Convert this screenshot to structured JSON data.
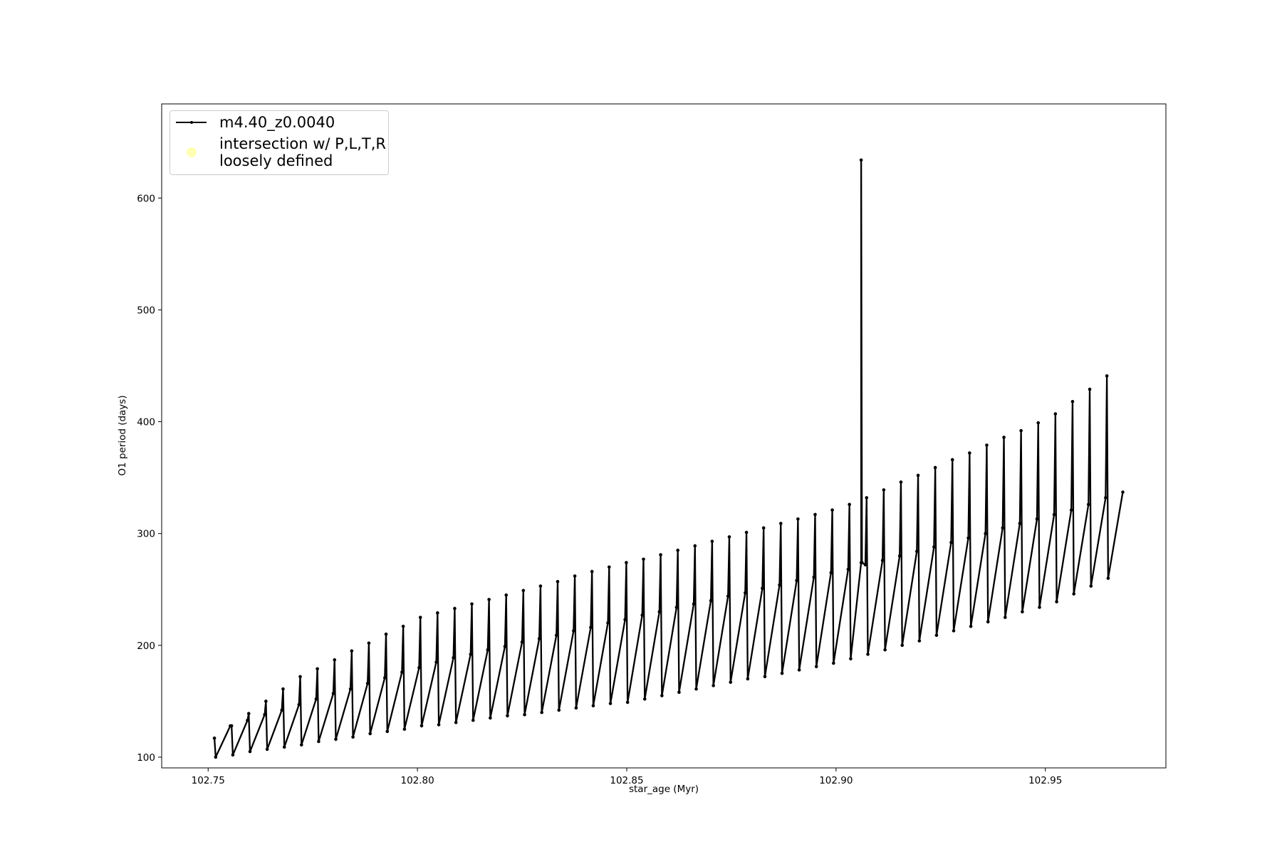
{
  "chart_data": {
    "type": "line",
    "xlabel": "star_age (Myr)",
    "ylabel": "O1 period (days)",
    "xlim": [
      102.7389,
      102.9788
    ],
    "ylim": [
      90.4,
      684.2
    ],
    "xticks": [
      {
        "value": 102.75,
        "label": "102.75"
      },
      {
        "value": 102.8,
        "label": "102.80"
      },
      {
        "value": 102.85,
        "label": "102.85"
      },
      {
        "value": 102.9,
        "label": "102.90"
      },
      {
        "value": 102.95,
        "label": "102.95"
      }
    ],
    "yticks": [
      100,
      200,
      300,
      400,
      500,
      600
    ],
    "legend": "upper left",
    "series": [
      {
        "name": "m4.40_z0.0040",
        "color": "#000000",
        "marker": "dot",
        "x": [
          102.7515,
          102.7518,
          102.7553,
          102.7556,
          102.7559,
          102.7594,
          102.7597,
          102.76,
          102.7635,
          102.7638,
          102.7641,
          102.7676,
          102.7679,
          102.7682,
          102.7717,
          102.772,
          102.7723,
          102.7758,
          102.7761,
          102.7764,
          102.7799,
          102.7802,
          102.7805,
          102.784,
          102.7843,
          102.7846,
          102.7881,
          102.7884,
          102.7887,
          102.7922,
          102.7925,
          102.7928,
          102.7963,
          102.7966,
          102.7969,
          102.8004,
          102.8007,
          102.801,
          102.8045,
          102.8048,
          102.8051,
          102.8086,
          102.8089,
          102.8092,
          102.8127,
          102.813,
          102.8133,
          102.8168,
          102.8171,
          102.8174,
          102.8209,
          102.8212,
          102.8215,
          102.825,
          102.8253,
          102.8256,
          102.8291,
          102.8294,
          102.8297,
          102.8332,
          102.8335,
          102.8338,
          102.8373,
          102.8376,
          102.8379,
          102.8414,
          102.8417,
          102.842,
          102.8455,
          102.8458,
          102.8461,
          102.8496,
          102.8499,
          102.8502,
          102.8537,
          102.854,
          102.8543,
          102.8578,
          102.8581,
          102.8584,
          102.8619,
          102.8622,
          102.8625,
          102.866,
          102.8663,
          102.8666,
          102.8701,
          102.8704,
          102.8707,
          102.8742,
          102.8745,
          102.8748,
          102.8783,
          102.8786,
          102.8789,
          102.8824,
          102.8827,
          102.883,
          102.8865,
          102.8868,
          102.8871,
          102.8906,
          102.8909,
          102.8912,
          102.8947,
          102.895,
          102.8953,
          102.8988,
          102.8991,
          102.8994,
          102.9029,
          102.9032,
          102.9035,
          102.906,
          102.906,
          102.9062,
          102.907,
          102.9073,
          102.9076,
          102.9111,
          102.9114,
          102.9117,
          102.9152,
          102.9155,
          102.9158,
          102.9193,
          102.9196,
          102.9199,
          102.9234,
          102.9237,
          102.924,
          102.9275,
          102.9278,
          102.9281,
          102.9316,
          102.9319,
          102.9322,
          102.9357,
          102.936,
          102.9363,
          102.9398,
          102.9401,
          102.9404,
          102.9439,
          102.9442,
          102.9445,
          102.948,
          102.9483,
          102.9486,
          102.9521,
          102.9524,
          102.9527,
          102.9562,
          102.9565,
          102.9568,
          102.9603,
          102.9606,
          102.9609,
          102.9644,
          102.9647,
          102.965,
          102.9685
        ],
        "values": [
          117,
          100,
          128,
          128,
          102,
          133,
          139,
          105,
          138,
          150,
          107,
          142,
          161,
          109,
          147,
          172,
          111,
          152,
          179,
          114,
          157,
          187,
          116,
          161,
          195,
          118,
          166,
          202,
          121,
          171,
          210,
          123,
          176,
          217,
          125,
          180,
          225,
          128,
          185,
          229,
          129,
          189,
          233,
          131,
          192,
          237,
          133,
          196,
          241,
          135,
          199,
          245,
          137,
          203,
          249,
          138,
          206,
          253,
          140,
          209,
          257,
          142,
          213,
          262,
          144,
          216,
          266,
          146,
          220,
          270,
          148,
          223,
          274,
          149,
          227,
          277,
          152,
          230,
          281,
          155,
          234,
          285,
          158,
          237,
          289,
          161,
          240,
          293,
          164,
          244,
          297,
          167,
          247,
          301,
          170,
          251,
          305,
          172,
          254,
          309,
          175,
          258,
          313,
          178,
          261,
          317,
          181,
          265,
          321,
          184,
          268,
          326,
          188,
          274,
          634,
          274,
          272,
          332,
          192,
          276,
          339,
          196,
          280,
          346,
          200,
          284,
          352,
          204,
          288,
          359,
          209,
          292,
          366,
          213,
          296,
          372,
          217,
          300,
          379,
          221,
          305,
          386,
          225,
          309,
          392,
          230,
          313,
          399,
          234,
          317,
          407,
          239,
          321,
          418,
          246,
          326,
          429,
          253,
          332,
          441,
          260,
          337
        ]
      },
      {
        "name": "intersection w/ P,L,T,R\nloosely defined",
        "color": "#ffffb3",
        "marker": "circle",
        "x": [],
        "values": []
      }
    ]
  }
}
